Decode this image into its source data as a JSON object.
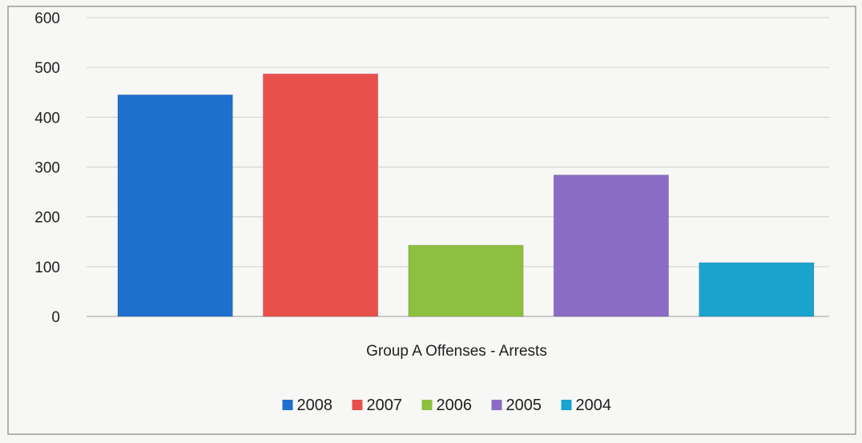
{
  "chart_data": {
    "type": "bar",
    "title": "",
    "xlabel": "Group A Offenses -  Arrests",
    "ylabel": "",
    "ylim": [
      0,
      600
    ],
    "yticks": [
      0,
      100,
      200,
      300,
      400,
      500,
      600
    ],
    "grid": true,
    "legend_position": "bottom",
    "categories": [
      "Group A Offenses -  Arrests"
    ],
    "series": [
      {
        "name": "2008",
        "values": [
          445
        ],
        "color": "#1f6fcc"
      },
      {
        "name": "2007",
        "values": [
          487
        ],
        "color": "#e8504c"
      },
      {
        "name": "2006",
        "values": [
          143
        ],
        "color": "#8dc03f"
      },
      {
        "name": "2005",
        "values": [
          284
        ],
        "color": "#8a6cc4"
      },
      {
        "name": "2004",
        "values": [
          108
        ],
        "color": "#1aa3cd"
      }
    ]
  }
}
